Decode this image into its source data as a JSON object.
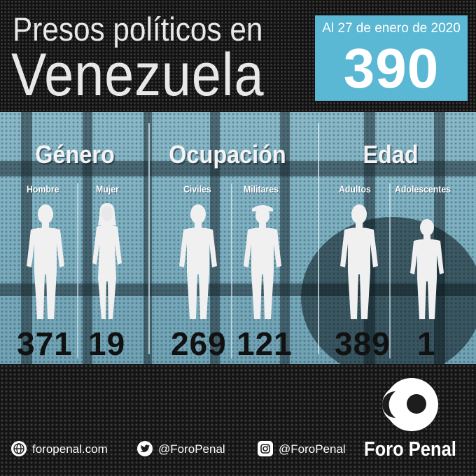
{
  "header": {
    "title_line1": "Presos políticos en",
    "title_line2": "Venezuela",
    "date_text": "Al 27 de enero de 2020",
    "total": "390"
  },
  "categories": [
    {
      "title": "Género",
      "groups": [
        {
          "label": "Hombre",
          "value": "371",
          "icon": "man-figure-icon"
        },
        {
          "label": "Mujer",
          "value": "19",
          "icon": "woman-figure-icon"
        }
      ]
    },
    {
      "title": "Ocupación",
      "groups": [
        {
          "label": "Civiles",
          "value": "269",
          "icon": "civilian-figure-icon"
        },
        {
          "label": "Militares",
          "value": "121",
          "icon": "soldier-figure-icon"
        }
      ]
    },
    {
      "title": "Edad",
      "groups": [
        {
          "label": "Adultos",
          "value": "389",
          "icon": "adult-figure-icon"
        },
        {
          "label": "Adolescentes",
          "value": "1",
          "icon": "teen-figure-icon"
        }
      ]
    }
  ],
  "footer": {
    "website": "foropenal.com",
    "twitter": "@ForoPenal",
    "instagram": "@ForoPenal",
    "brand": "Foro Penal"
  },
  "colors": {
    "accent_box": "#5ab8d4",
    "mid_background": "#7eb1c2",
    "dark_background": "#121212",
    "numbers": "#111111"
  }
}
